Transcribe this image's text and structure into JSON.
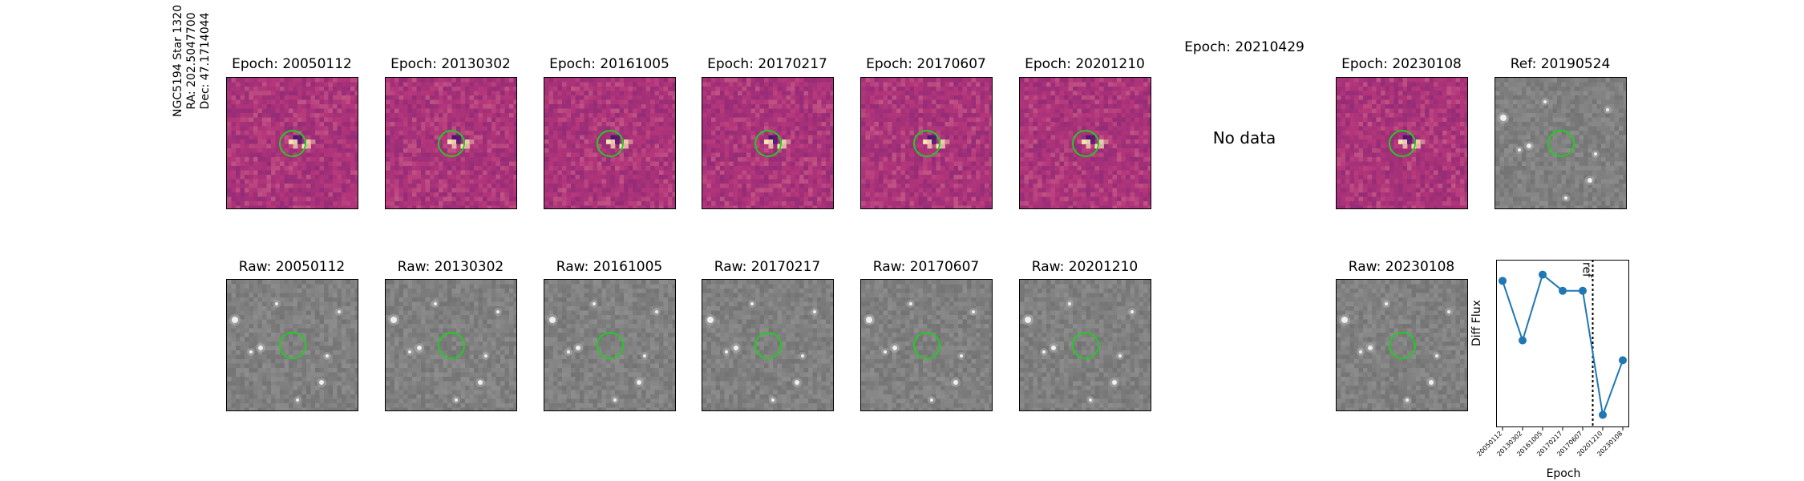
{
  "star": {
    "name": "NGC5194 Star 1320",
    "ra": "RA: 202.5047700",
    "dec": "Dec: 47.1714044"
  },
  "diff_titles": [
    "Epoch: 20050112",
    "Epoch: 20130302",
    "Epoch: 20161005",
    "Epoch: 20170217",
    "Epoch: 20170607",
    "Epoch: 20201210",
    "Epoch: 20210429",
    "Epoch: 20230108",
    "Ref: 20190524"
  ],
  "raw_titles": [
    "Raw: 20050112",
    "Raw: 20130302",
    "Raw: 20161005",
    "Raw: 20170217",
    "Raw: 20170607",
    "Raw: 20201210",
    "Raw: 20230108"
  ],
  "no_data": "No data",
  "colors": {
    "aperture": "#22cc22",
    "series": "#1f77b4",
    "diff_dark": "#3b0f6f",
    "diff_mid": "#b5367a",
    "diff_light": "#fcfdbf"
  },
  "chart_data": {
    "type": "line",
    "xlabel": "Epoch",
    "ylabel": "Diff Flux",
    "ref_label": "ref",
    "ref_position_between": [
      "20170607",
      "20201210"
    ],
    "grid": false,
    "categories": [
      "20050112",
      "20130302",
      "20161005",
      "20170217",
      "20170607",
      "20201210",
      "20230108"
    ],
    "values": [
      0.88,
      0.4,
      0.93,
      0.8,
      0.8,
      -0.2,
      0.24
    ],
    "ylim": [
      -0.3,
      1.05
    ]
  }
}
